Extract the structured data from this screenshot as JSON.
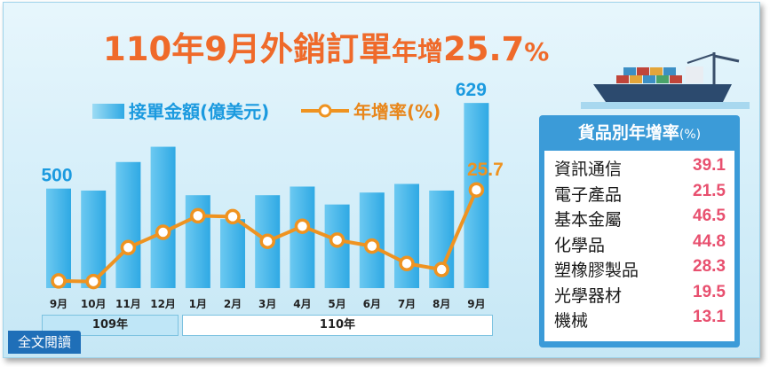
{
  "title": {
    "part1": "110年9月外銷訂單",
    "part2": "年增",
    "part3": "25.7",
    "part4": "%"
  },
  "legend": {
    "bar_label": "接單金額(億美元)",
    "line_label": "年增率(%)"
  },
  "periods": {
    "y109": "109年",
    "y110": "110年"
  },
  "read_more": "全文閱讀",
  "panel": {
    "title": "貨品別年增率",
    "unit": "(%)",
    "rows": [
      {
        "name": "資訊通信",
        "value": "39.1"
      },
      {
        "name": "電子產品",
        "value": "21.5"
      },
      {
        "name": "基本金屬",
        "value": "46.5"
      },
      {
        "name": "化學品",
        "value": "44.8"
      },
      {
        "name": "塑橡膠製品",
        "value": "28.3"
      },
      {
        "name": "光學器材",
        "value": "19.5"
      },
      {
        "name": "機械",
        "value": "13.1"
      }
    ]
  },
  "colors": {
    "bar": "#4fb9ea",
    "line": "#ef9320",
    "title": "#ef6a2a",
    "panel": "#3b9bd8",
    "value": "#e8506f"
  },
  "chart_data": {
    "type": "bar",
    "categories": [
      "9月",
      "10月",
      "11月",
      "12月",
      "1月",
      "2月",
      "3月",
      "4月",
      "5月",
      "6月",
      "7月",
      "8月",
      "9月"
    ],
    "series": [
      {
        "name": "接單金額(億美元)",
        "type": "bar",
        "values": [
          500,
          497,
          540,
          563,
          490,
          454,
          490,
          503,
          476,
          494,
          507,
          497,
          629
        ]
      },
      {
        "name": "年增率(%)",
        "type": "line",
        "values": [
          -4.6,
          -4.8,
          6.5,
          11.6,
          17.1,
          16.8,
          8.6,
          13.6,
          9.0,
          7.0,
          1.2,
          -0.8,
          25.7
        ]
      }
    ],
    "data_labels": {
      "first_bar": "500",
      "last_bar": "629",
      "last_point": "25.7"
    },
    "legend": "top-left",
    "grid": false
  }
}
